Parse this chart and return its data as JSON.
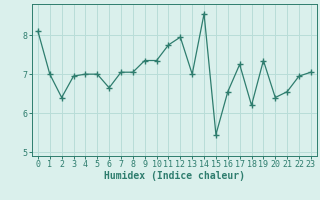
{
  "x": [
    0,
    1,
    2,
    3,
    4,
    5,
    6,
    7,
    8,
    9,
    10,
    11,
    12,
    13,
    14,
    15,
    16,
    17,
    18,
    19,
    20,
    21,
    22,
    23
  ],
  "y": [
    8.1,
    7.0,
    6.4,
    6.95,
    7.0,
    7.0,
    6.65,
    7.05,
    7.05,
    7.35,
    7.35,
    7.75,
    7.95,
    7.0,
    8.55,
    5.45,
    6.55,
    7.25,
    6.2,
    7.35,
    6.4,
    6.55,
    6.95,
    7.05
  ],
  "line_color": "#2e7d6e",
  "marker": "+",
  "marker_size": 4,
  "bg_color": "#daf0ec",
  "grid_color": "#b8ddd8",
  "xlabel": "Humidex (Indice chaleur)",
  "ylim": [
    4.9,
    8.8
  ],
  "xlim": [
    -0.5,
    23.5
  ],
  "yticks": [
    5,
    6,
    7,
    8
  ],
  "xticks": [
    0,
    1,
    2,
    3,
    4,
    5,
    6,
    7,
    8,
    9,
    10,
    11,
    12,
    13,
    14,
    15,
    16,
    17,
    18,
    19,
    20,
    21,
    22,
    23
  ],
  "label_fontsize": 7,
  "tick_fontsize": 6
}
